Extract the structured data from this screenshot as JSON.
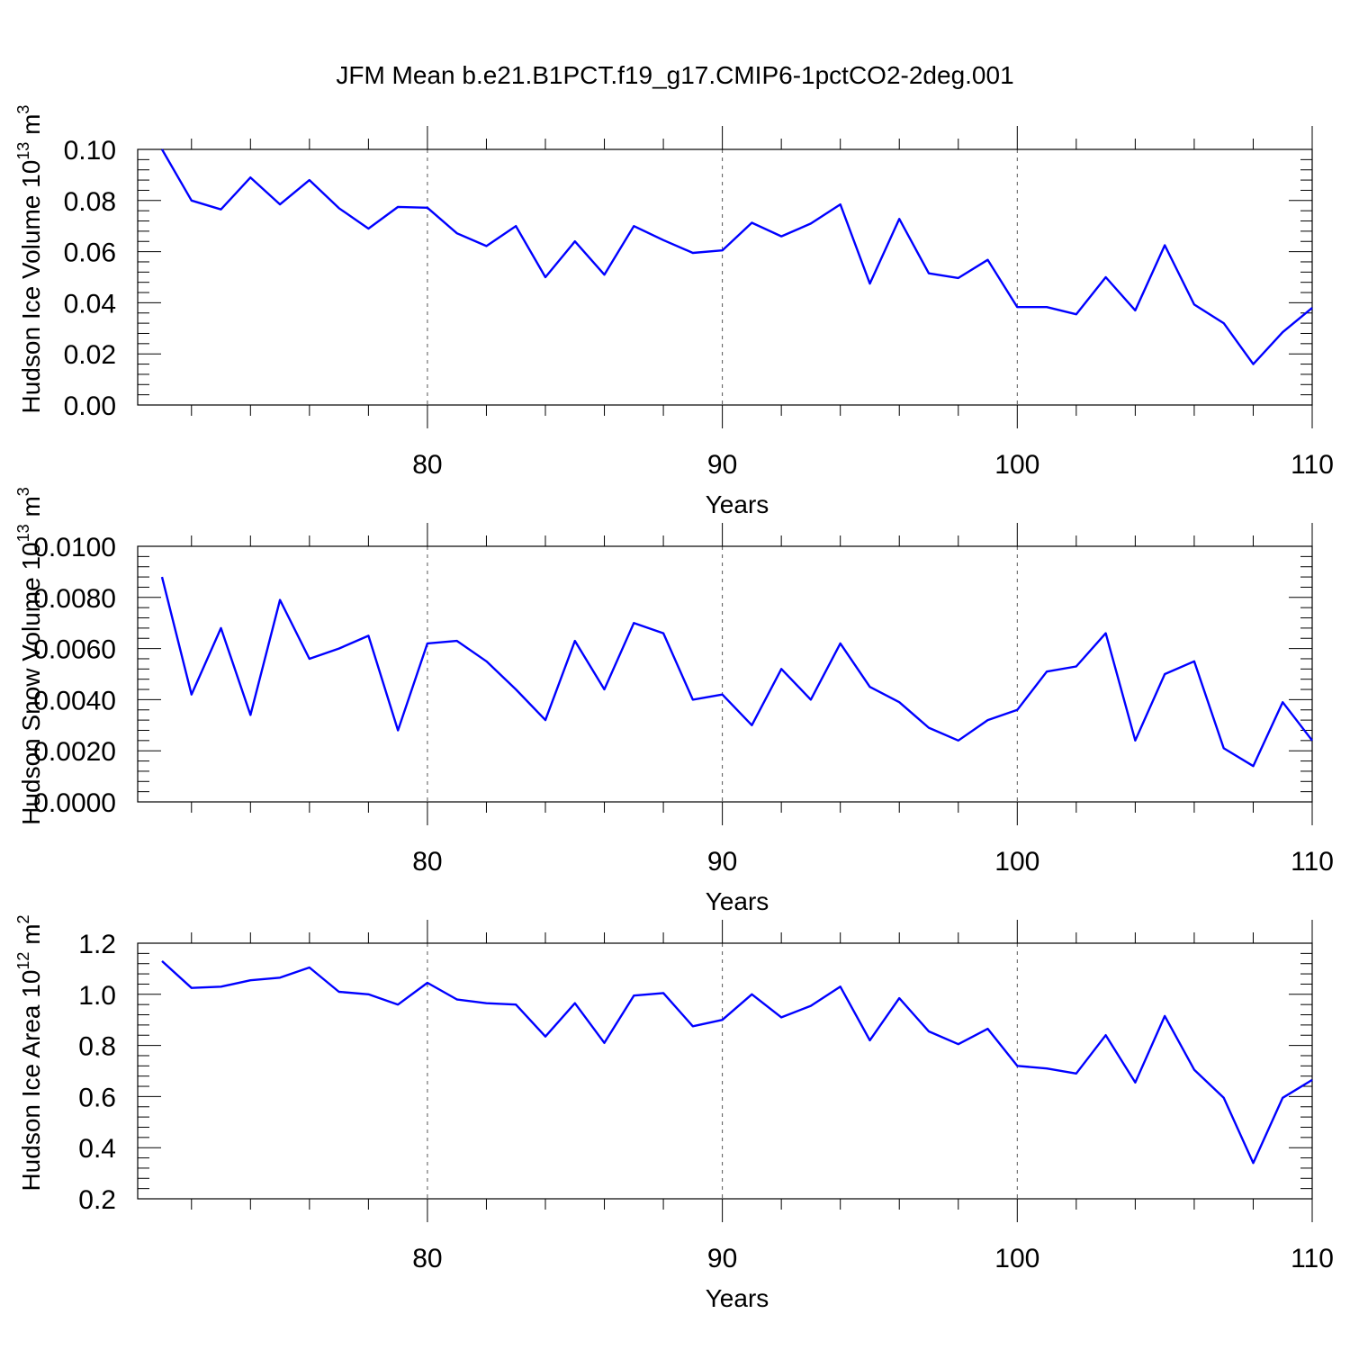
{
  "title": "JFM Mean b.e21.B1PCT.f19_g17.CMIP6-1pctCO2-2deg.001",
  "line_color": "#0000ff",
  "chart_data": [
    {
      "type": "line",
      "ylabel": "Hudson Ice Volume",
      "ylabel_unit": "10",
      "ylabel_exp": "13",
      "ylabel_m": "m",
      "ylabel_m_exp": "3",
      "xlabel": "Years",
      "xlim": [
        71,
        110
      ],
      "ylim": [
        0,
        0.1
      ],
      "xticks": [
        80,
        90,
        100,
        110
      ],
      "xtick_labels": [
        "80",
        "90",
        "100",
        "110"
      ],
      "yticks": [
        0,
        0.02,
        0.04,
        0.06,
        0.08,
        0.1
      ],
      "ytick_labels": [
        "0.00",
        "0.02",
        "0.04",
        "0.06",
        "0.08",
        "0.10"
      ],
      "grid_x": [
        80,
        90,
        100
      ],
      "x": [
        71,
        72,
        73,
        74,
        75,
        76,
        77,
        78,
        79,
        80,
        81,
        82,
        83,
        84,
        85,
        86,
        87,
        88,
        89,
        90,
        91,
        92,
        93,
        94,
        95,
        96,
        97,
        98,
        99,
        100,
        101,
        102,
        103,
        104,
        105,
        106,
        107,
        108,
        109,
        110
      ],
      "values": [
        0.1,
        0.08,
        0.0765,
        0.089,
        0.0785,
        0.088,
        0.077,
        0.069,
        0.0775,
        0.0772,
        0.0672,
        0.0622,
        0.07,
        0.05,
        0.064,
        0.051,
        0.07,
        0.0645,
        0.0595,
        0.0605,
        0.0713,
        0.066,
        0.071,
        0.0785,
        0.0475,
        0.0728,
        0.0515,
        0.0497,
        0.0568,
        0.0383,
        0.0383,
        0.0355,
        0.05,
        0.037,
        0.0625,
        0.0393,
        0.032,
        0.016,
        0.0285,
        0.038
      ]
    },
    {
      "type": "line",
      "ylabel": "Hudson Snow Volume",
      "ylabel_unit": "10",
      "ylabel_exp": "13",
      "ylabel_m": "m",
      "ylabel_m_exp": "3",
      "xlabel": "Years",
      "xlim": [
        71,
        110
      ],
      "ylim": [
        0,
        0.01
      ],
      "xticks": [
        80,
        90,
        100,
        110
      ],
      "xtick_labels": [
        "80",
        "90",
        "100",
        "110"
      ],
      "yticks": [
        0,
        0.002,
        0.004,
        0.006,
        0.008,
        0.01
      ],
      "ytick_labels": [
        "0.0000",
        "0.0020",
        "0.0040",
        "0.0060",
        "0.0080",
        "0.0100"
      ],
      "grid_x": [
        80,
        90,
        100
      ],
      "x": [
        71,
        72,
        73,
        74,
        75,
        76,
        77,
        78,
        79,
        80,
        81,
        82,
        83,
        84,
        85,
        86,
        87,
        88,
        89,
        90,
        91,
        92,
        93,
        94,
        95,
        96,
        97,
        98,
        99,
        100,
        101,
        102,
        103,
        104,
        105,
        106,
        107,
        108,
        109,
        110
      ],
      "values": [
        0.0088,
        0.0042,
        0.0068,
        0.0034,
        0.0079,
        0.0056,
        0.006,
        0.0065,
        0.0028,
        0.0062,
        0.0063,
        0.0055,
        0.0044,
        0.0032,
        0.0063,
        0.0044,
        0.007,
        0.0066,
        0.004,
        0.0042,
        0.003,
        0.0052,
        0.004,
        0.0062,
        0.0045,
        0.0039,
        0.0029,
        0.0024,
        0.0032,
        0.0036,
        0.0051,
        0.0053,
        0.0066,
        0.0024,
        0.005,
        0.0055,
        0.0021,
        0.0014,
        0.0039,
        0.0024
      ]
    },
    {
      "type": "line",
      "ylabel": "Hudson Ice Area",
      "ylabel_unit": "10",
      "ylabel_exp": "12",
      "ylabel_m": "m",
      "ylabel_m_exp": "2",
      "xlabel": "Years",
      "xlim": [
        71,
        110
      ],
      "ylim": [
        0.2,
        1.2
      ],
      "xticks": [
        80,
        90,
        100,
        110
      ],
      "xtick_labels": [
        "80",
        "90",
        "100",
        "110"
      ],
      "yticks": [
        0.2,
        0.4,
        0.6,
        0.8,
        1.0,
        1.2
      ],
      "ytick_labels": [
        "0.2",
        "0.4",
        "0.6",
        "0.8",
        "1.0",
        "1.2"
      ],
      "grid_x": [
        80,
        90,
        100
      ],
      "x": [
        71,
        72,
        73,
        74,
        75,
        76,
        77,
        78,
        79,
        80,
        81,
        82,
        83,
        84,
        85,
        86,
        87,
        88,
        89,
        90,
        91,
        92,
        93,
        94,
        95,
        96,
        97,
        98,
        99,
        100,
        101,
        102,
        103,
        104,
        105,
        106,
        107,
        108,
        109,
        110
      ],
      "values": [
        1.13,
        1.025,
        1.03,
        1.055,
        1.065,
        1.105,
        1.01,
        1.0,
        0.96,
        1.045,
        0.98,
        0.965,
        0.96,
        0.835,
        0.965,
        0.81,
        0.995,
        1.005,
        0.875,
        0.9,
        1.0,
        0.91,
        0.955,
        1.03,
        0.82,
        0.985,
        0.855,
        0.805,
        0.865,
        0.72,
        0.71,
        0.69,
        0.84,
        0.655,
        0.915,
        0.705,
        0.595,
        0.34,
        0.595,
        0.665
      ]
    }
  ]
}
